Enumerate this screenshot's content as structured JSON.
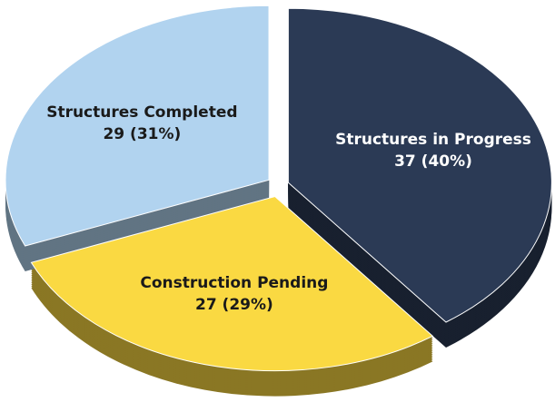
{
  "chart_data": {
    "type": "pie",
    "categories": [
      "Structures in Progress",
      "Construction Pending",
      "Structures Completed"
    ],
    "values": [
      37,
      27,
      29
    ],
    "value_labels": [
      "37 (40%)",
      "27 (29%)",
      "29 (31%)"
    ],
    "colors": [
      "#2b3a55",
      "#fad942",
      "#b1d3ef"
    ]
  }
}
